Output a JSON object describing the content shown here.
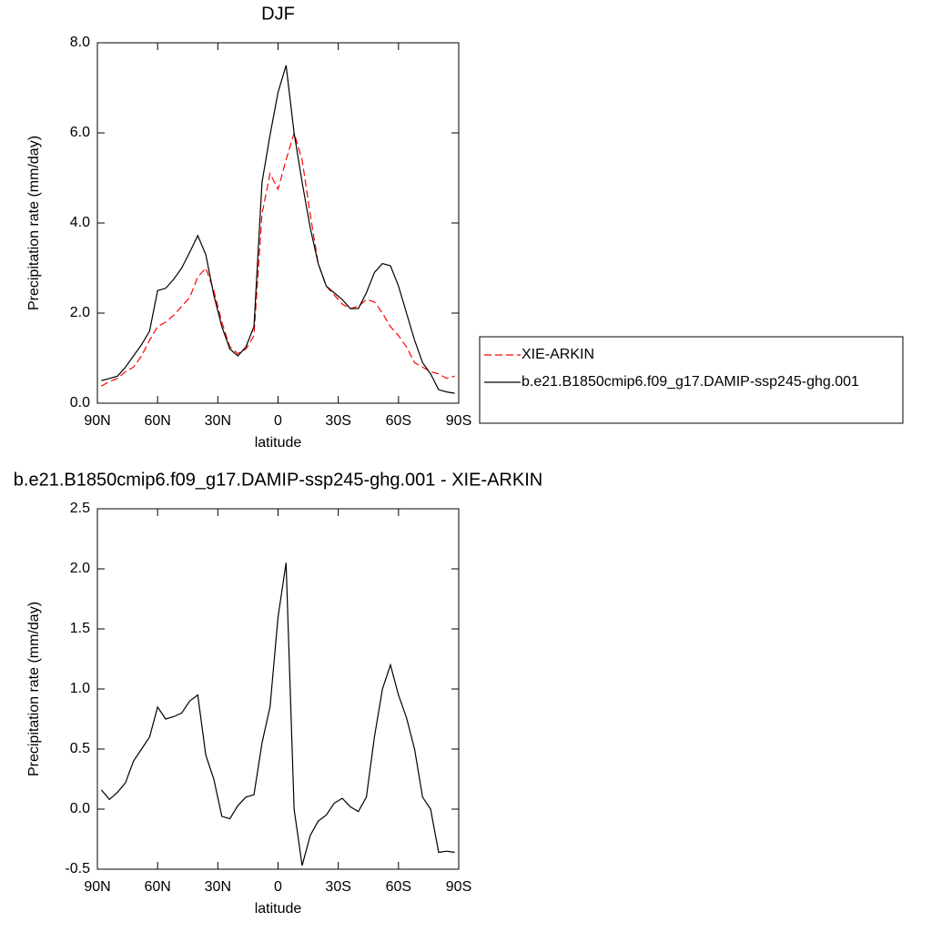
{
  "chart_data": [
    {
      "type": "line",
      "title": "DJF",
      "xlabel": "latitude",
      "ylabel": "Precipitation rate (mm/day)",
      "x": [
        88,
        84,
        80,
        76,
        72,
        68,
        64,
        60,
        56,
        52,
        48,
        44,
        40,
        36,
        32,
        28,
        24,
        20,
        16,
        12,
        8,
        4,
        0,
        -4,
        -8,
        -12,
        -16,
        -20,
        -24,
        -28,
        -32,
        -36,
        -40,
        -44,
        -48,
        -52,
        -56,
        -60,
        -64,
        -68,
        -72,
        -76,
        -80,
        -84,
        -88
      ],
      "xlim": [
        90,
        -90
      ],
      "xticks": [
        {
          "value": 90,
          "label": "90N"
        },
        {
          "value": 60,
          "label": "60N"
        },
        {
          "value": 30,
          "label": "30N"
        },
        0,
        {
          "value": -30,
          "label": "30S"
        },
        {
          "value": -60,
          "label": "60S"
        },
        {
          "value": -90,
          "label": "90S"
        }
      ],
      "ylim": [
        0,
        8
      ],
      "yticks": [
        {
          "value": 0,
          "label": "0.0"
        },
        {
          "value": 2,
          "label": "2.0"
        },
        {
          "value": 4,
          "label": "4.0"
        },
        {
          "value": 6,
          "label": "6.0"
        },
        {
          "value": 8,
          "label": "8.0"
        }
      ],
      "legend": "right",
      "series": [
        {
          "name": "XIE-ARKIN",
          "color": "#ff0000",
          "dashed": true,
          "values": [
            0.38,
            0.48,
            0.55,
            0.7,
            0.8,
            1.05,
            1.4,
            1.7,
            1.8,
            1.95,
            2.15,
            2.35,
            2.8,
            3.0,
            2.5,
            1.8,
            1.25,
            1.1,
            1.2,
            1.5,
            4.2,
            5.1,
            4.75,
            5.4,
            6.0,
            5.4,
            4.2,
            3.1,
            2.6,
            2.4,
            2.2,
            2.1,
            2.15,
            2.3,
            2.25,
            2.0,
            1.7,
            1.5,
            1.25,
            0.9,
            0.8,
            0.7,
            0.65,
            0.55,
            0.6
          ]
        },
        {
          "name": "b.e21.B1850cmip6.f09_g17.DAMIP-ssp245-ghg.001",
          "color": "#000000",
          "dashed": false,
          "values": [
            0.5,
            0.55,
            0.6,
            0.8,
            1.05,
            1.3,
            1.6,
            2.5,
            2.55,
            2.75,
            3.0,
            3.35,
            3.72,
            3.3,
            2.4,
            1.7,
            1.2,
            1.05,
            1.25,
            1.7,
            4.9,
            5.95,
            6.9,
            7.5,
            6.0,
            4.9,
            3.9,
            3.1,
            2.6,
            2.45,
            2.3,
            2.1,
            2.1,
            2.45,
            2.9,
            3.1,
            3.05,
            2.6,
            2.0,
            1.4,
            0.9,
            0.65,
            0.3,
            0.25,
            0.22
          ]
        }
      ]
    },
    {
      "type": "line",
      "title": "b.e21.B1850cmip6.f09_g17.DAMIP-ssp245-ghg.001 - XIE-ARKIN",
      "xlabel": "latitude",
      "ylabel": "Precipitation rate (mm/day)",
      "x": [
        88,
        84,
        80,
        76,
        72,
        68,
        64,
        60,
        56,
        52,
        48,
        44,
        40,
        36,
        32,
        28,
        24,
        20,
        16,
        12,
        8,
        4,
        0,
        -4,
        -8,
        -12,
        -16,
        -20,
        -24,
        -28,
        -32,
        -36,
        -40,
        -44,
        -48,
        -52,
        -56,
        -60,
        -64,
        -68,
        -72,
        -76,
        -80,
        -84,
        -88
      ],
      "xlim": [
        90,
        -90
      ],
      "xticks": [
        {
          "value": 90,
          "label": "90N"
        },
        {
          "value": 60,
          "label": "60N"
        },
        {
          "value": 30,
          "label": "30N"
        },
        0,
        {
          "value": -30,
          "label": "30S"
        },
        {
          "value": -60,
          "label": "60S"
        },
        {
          "value": -90,
          "label": "90S"
        }
      ],
      "ylim": [
        -0.5,
        2.5
      ],
      "yticks": [
        -0.5,
        {
          "value": 0,
          "label": "0.0"
        },
        0.5,
        {
          "value": 1,
          "label": "1.0"
        },
        1.5,
        {
          "value": 2,
          "label": "2.0"
        },
        2.5
      ],
      "series": [
        {
          "color": "#000000",
          "dashed": false,
          "values": [
            0.16,
            0.08,
            0.14,
            0.22,
            0.4,
            0.5,
            0.6,
            0.85,
            0.75,
            0.77,
            0.8,
            0.9,
            0.95,
            0.45,
            0.25,
            -0.06,
            -0.08,
            0.03,
            0.1,
            0.12,
            0.55,
            0.85,
            1.6,
            2.05,
            0.0,
            -0.47,
            -0.22,
            -0.1,
            -0.05,
            0.05,
            0.09,
            0.02,
            -0.02,
            0.1,
            0.6,
            1.0,
            1.2,
            0.95,
            0.76,
            0.5,
            0.1,
            0.0,
            -0.36,
            -0.35,
            -0.36
          ]
        }
      ]
    }
  ]
}
